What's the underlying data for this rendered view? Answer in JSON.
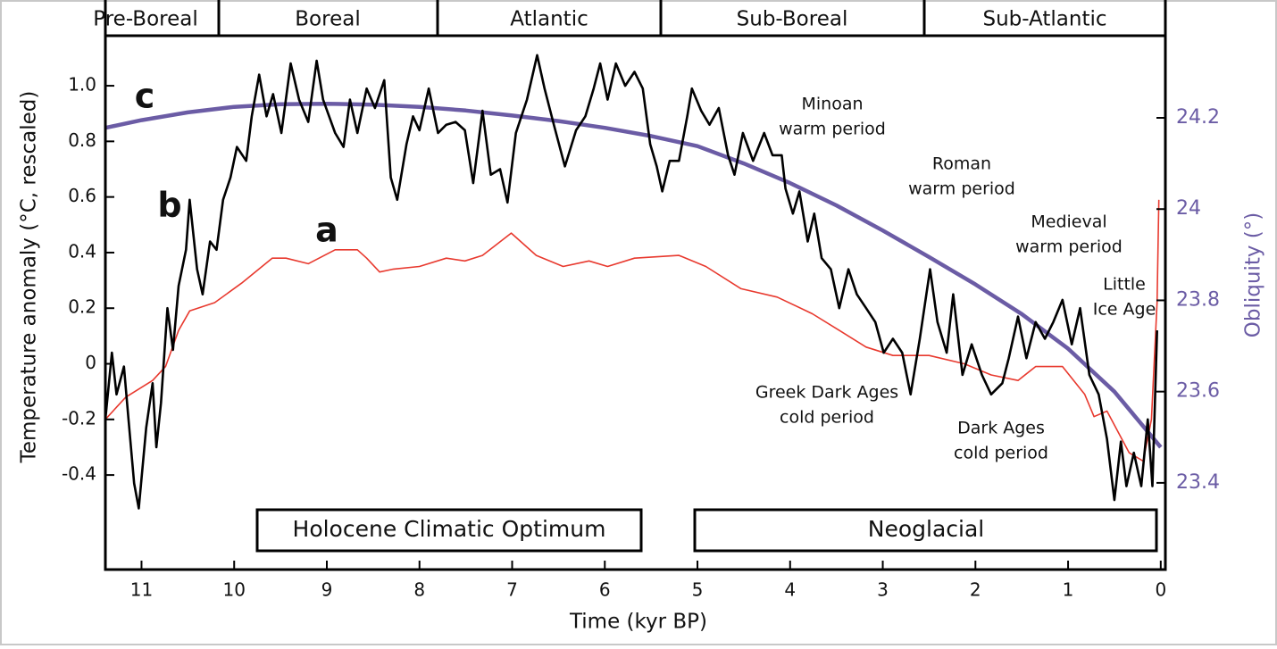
{
  "chart_data": {
    "type": "line",
    "xlabel": "Time (kyr BP)",
    "ylabel": "Temperature anomaly (°C, rescaled)",
    "y2label": "Obliquity (°)",
    "xlim": [
      11.39,
      -0.05
    ],
    "xticks": [
      11,
      10,
      9,
      8,
      7,
      6,
      5,
      4,
      3,
      2,
      1,
      0
    ],
    "ylim": [
      -0.74,
      1.18
    ],
    "yticks": [
      {
        "value": 1,
        "label": "1.0"
      },
      0.8,
      0.6,
      0.4,
      0.2,
      0,
      -0.2,
      -0.4
    ],
    "y2lim": [
      23.21,
      24.38
    ],
    "y2ticks": [
      24.2,
      24,
      23.8,
      23.6,
      23.4
    ],
    "y2color": "#6b5ca5",
    "periods": [
      "Pre-Boreal",
      "Boreal",
      "Atlantic",
      "Sub-Boreal",
      "Sub-Atlantic"
    ],
    "phases": [
      "Holocene Climatic Optimum",
      "Neoglacial"
    ],
    "annotations": [
      {
        "lines": [
          "Minoan",
          "warm period"
        ]
      },
      {
        "lines": [
          "Roman",
          "warm period"
        ]
      },
      {
        "lines": [
          "Medieval",
          "warm period"
        ]
      },
      {
        "lines": [
          "Little",
          "Ice Age"
        ]
      },
      {
        "lines": [
          "Greek Dark Ages",
          "cold period"
        ]
      },
      {
        "lines": [
          "Dark Ages",
          "cold period"
        ]
      }
    ],
    "series": [
      {
        "name": "a",
        "color": "#e8392e",
        "x": [
          11.39,
          11.17,
          10.88,
          10.74,
          10.6,
          10.48,
          10.21,
          9.92,
          9.59,
          9.44,
          9.2,
          8.91,
          8.67,
          8.57,
          8.43,
          8.29,
          8.0,
          7.71,
          7.51,
          7.32,
          7.01,
          6.74,
          6.45,
          6.17,
          5.97,
          5.68,
          5.2,
          4.91,
          4.53,
          4.14,
          3.76,
          3.47,
          3.18,
          2.89,
          2.5,
          2.12,
          1.83,
          1.54,
          1.35,
          1.06,
          0.82,
          0.72,
          0.58,
          0.34,
          0.19,
          0.1,
          0.04,
          0.02
        ],
        "values": [
          -0.2,
          -0.12,
          -0.06,
          -0.01,
          0.12,
          0.19,
          0.22,
          0.29,
          0.38,
          0.38,
          0.36,
          0.41,
          0.41,
          0.38,
          0.33,
          0.34,
          0.35,
          0.38,
          0.37,
          0.39,
          0.47,
          0.39,
          0.35,
          0.37,
          0.35,
          0.38,
          0.39,
          0.35,
          0.27,
          0.24,
          0.18,
          0.12,
          0.06,
          0.03,
          0.03,
          0.0,
          -0.04,
          -0.06,
          -0.01,
          -0.01,
          -0.11,
          -0.19,
          -0.17,
          -0.32,
          -0.35,
          -0.2,
          0.22,
          0.59
        ]
      },
      {
        "name": "b",
        "color": "#000000",
        "x": [
          11.39,
          11.32,
          11.27,
          11.19,
          11.14,
          11.08,
          11.03,
          10.95,
          10.88,
          10.84,
          10.79,
          10.72,
          10.66,
          10.6,
          10.52,
          10.48,
          10.4,
          10.34,
          10.26,
          10.19,
          10.12,
          10.04,
          9.97,
          9.87,
          9.81,
          9.73,
          9.65,
          9.58,
          9.49,
          9.39,
          9.3,
          9.2,
          9.11,
          9.04,
          8.91,
          8.82,
          8.75,
          8.67,
          8.57,
          8.48,
          8.38,
          8.31,
          8.24,
          8.14,
          8.07,
          8.0,
          7.9,
          7.8,
          7.71,
          7.61,
          7.51,
          7.42,
          7.32,
          7.23,
          7.13,
          7.05,
          6.96,
          6.84,
          6.73,
          6.65,
          6.55,
          6.43,
          6.31,
          6.21,
          6.12,
          6.05,
          5.97,
          5.88,
          5.78,
          5.68,
          5.59,
          5.51,
          5.44,
          5.38,
          5.3,
          5.2,
          5.11,
          5.06,
          4.96,
          4.87,
          4.77,
          4.67,
          4.6,
          4.51,
          4.4,
          4.28,
          4.19,
          4.09,
          4.05,
          3.97,
          3.9,
          3.81,
          3.74,
          3.66,
          3.56,
          3.47,
          3.37,
          3.28,
          3.18,
          3.08,
          2.99,
          2.89,
          2.79,
          2.7,
          2.6,
          2.49,
          2.41,
          2.31,
          2.24,
          2.14,
          2.04,
          1.93,
          1.83,
          1.71,
          1.64,
          1.54,
          1.45,
          1.35,
          1.25,
          1.16,
          1.06,
          0.96,
          0.87,
          0.77,
          0.67,
          0.58,
          0.5,
          0.43,
          0.37,
          0.29,
          0.21,
          0.14,
          0.09,
          0.04
        ],
        "values": [
          -0.2,
          0.04,
          -0.11,
          -0.01,
          -0.2,
          -0.43,
          -0.52,
          -0.23,
          -0.07,
          -0.3,
          -0.14,
          0.2,
          0.05,
          0.28,
          0.41,
          0.59,
          0.34,
          0.25,
          0.44,
          0.41,
          0.59,
          0.67,
          0.78,
          0.73,
          0.89,
          1.04,
          0.89,
          0.97,
          0.83,
          1.08,
          0.95,
          0.87,
          1.09,
          0.95,
          0.83,
          0.78,
          0.95,
          0.83,
          0.99,
          0.92,
          1.02,
          0.67,
          0.59,
          0.79,
          0.89,
          0.84,
          0.99,
          0.83,
          0.86,
          0.87,
          0.84,
          0.65,
          0.91,
          0.68,
          0.7,
          0.58,
          0.83,
          0.95,
          1.11,
          0.99,
          0.86,
          0.71,
          0.84,
          0.89,
          0.99,
          1.08,
          0.95,
          1.08,
          1.0,
          1.05,
          0.99,
          0.79,
          0.71,
          0.62,
          0.73,
          0.73,
          0.89,
          0.99,
          0.91,
          0.86,
          0.92,
          0.75,
          0.68,
          0.83,
          0.73,
          0.83,
          0.75,
          0.75,
          0.63,
          0.54,
          0.62,
          0.44,
          0.54,
          0.38,
          0.34,
          0.2,
          0.34,
          0.25,
          0.2,
          0.15,
          0.04,
          0.09,
          0.04,
          -0.11,
          0.09,
          0.34,
          0.15,
          0.04,
          0.25,
          -0.04,
          0.07,
          -0.04,
          -0.11,
          -0.07,
          0.02,
          0.17,
          0.02,
          0.15,
          0.09,
          0.15,
          0.23,
          0.07,
          0.2,
          -0.04,
          -0.11,
          -0.27,
          -0.49,
          -0.28,
          -0.44,
          -0.32,
          -0.44,
          -0.2,
          -0.44,
          0.12
        ]
      },
      {
        "name": "c",
        "color": "#6b5ca5",
        "axis": "y2",
        "x": [
          11.39,
          11,
          10.5,
          10,
          9.5,
          9,
          8.5,
          8,
          7.5,
          7,
          6.5,
          6,
          5.5,
          5,
          4.5,
          4,
          3.5,
          3,
          2.5,
          2,
          1.5,
          1,
          0.5,
          0
        ],
        "values": [
          24.178,
          24.195,
          24.212,
          24.224,
          24.23,
          24.231,
          24.229,
          24.224,
          24.216,
          24.205,
          24.193,
          24.178,
          24.16,
          24.138,
          24.1,
          24.057,
          24.008,
          23.953,
          23.895,
          23.835,
          23.77,
          23.694,
          23.6,
          23.478
        ]
      }
    ]
  }
}
